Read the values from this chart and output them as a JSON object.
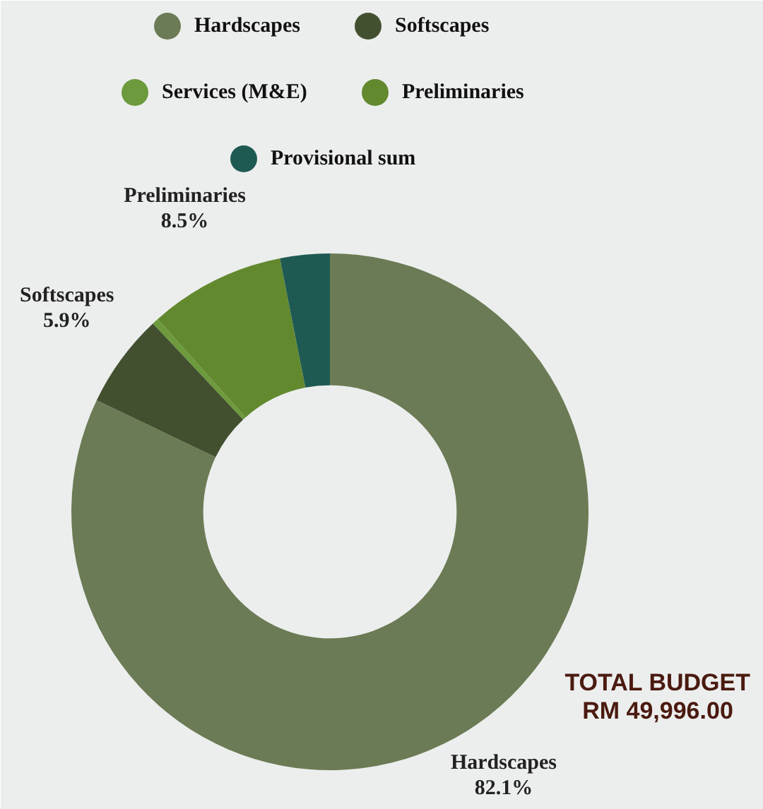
{
  "chart_data": {
    "type": "donut",
    "categories": [
      "Hardscapes",
      "Softscapes",
      "Services (M&E)",
      "Preliminaries",
      "Provisional sum"
    ],
    "values": [
      82.1,
      5.9,
      0.4,
      8.5,
      3.1
    ],
    "colors": [
      "#6b7b55",
      "#435030",
      "#6c9a3c",
      "#63892f",
      "#1e5a52"
    ],
    "value_labels": [
      "82.1%",
      "5.9%",
      null,
      "8.5%",
      null
    ],
    "annotations": [
      "TOTAL BUDGET",
      "RM 49,996.00"
    ],
    "legend": "top"
  }
}
